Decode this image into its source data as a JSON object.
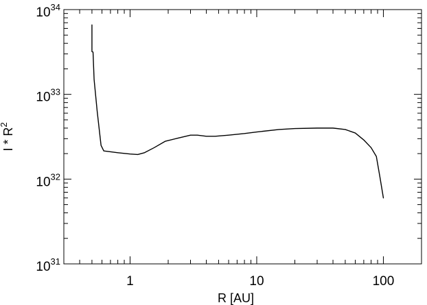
{
  "chart_data": {
    "type": "line",
    "title": "",
    "xlabel": "R [AU]",
    "ylabel_base": "I * R",
    "ylabel_sup": "2",
    "xscale": "log",
    "yscale": "log",
    "xlim": [
      0.3,
      200
    ],
    "ylim": [
      1e+31,
      1e+34
    ],
    "grid": false,
    "x_ticks": [
      {
        "value": 1,
        "label": "1"
      },
      {
        "value": 10,
        "label": "10"
      },
      {
        "value": 100,
        "label": "100"
      }
    ],
    "y_ticks": [
      {
        "value": 1e+31,
        "base": "10",
        "exp": "31"
      },
      {
        "value": 1e+32,
        "base": "10",
        "exp": "32"
      },
      {
        "value": 1e+33,
        "base": "10",
        "exp": "33"
      },
      {
        "value": 1e+34,
        "base": "10",
        "exp": "34"
      }
    ],
    "series": [
      {
        "color": "#000000",
        "x": [
          0.5,
          0.5,
          0.51,
          0.52,
          0.55,
          0.59,
          0.62,
          0.7,
          0.8,
          1.0,
          1.15,
          1.3,
          1.55,
          1.9,
          2.4,
          3.0,
          3.4,
          4.0,
          4.7,
          6.0,
          8.0,
          10.0,
          15.0,
          20.0,
          30.0,
          40.0,
          50.0,
          60.0,
          70.0,
          80.0,
          88.0,
          94.0,
          100.0
        ],
        "y": [
          6.6e+33,
          3.2e+33,
          3.15e+33,
          1.5e+33,
          6.3e+32,
          2.5e+32,
          2.15e+32,
          2.1e+32,
          2.05e+32,
          1.98e+32,
          1.95e+32,
          2.05e+32,
          2.35e+32,
          2.8e+32,
          3.05e+32,
          3.3e+32,
          3.3e+32,
          3.2e+32,
          3.2e+32,
          3.3e+32,
          3.45e+32,
          3.6e+32,
          3.85e+32,
          3.95e+32,
          4e+32,
          4e+32,
          3.85e+32,
          3.5e+32,
          2.9e+32,
          2.35e+32,
          1.85e+32,
          1.05e+32,
          6e+31
        ]
      }
    ]
  }
}
